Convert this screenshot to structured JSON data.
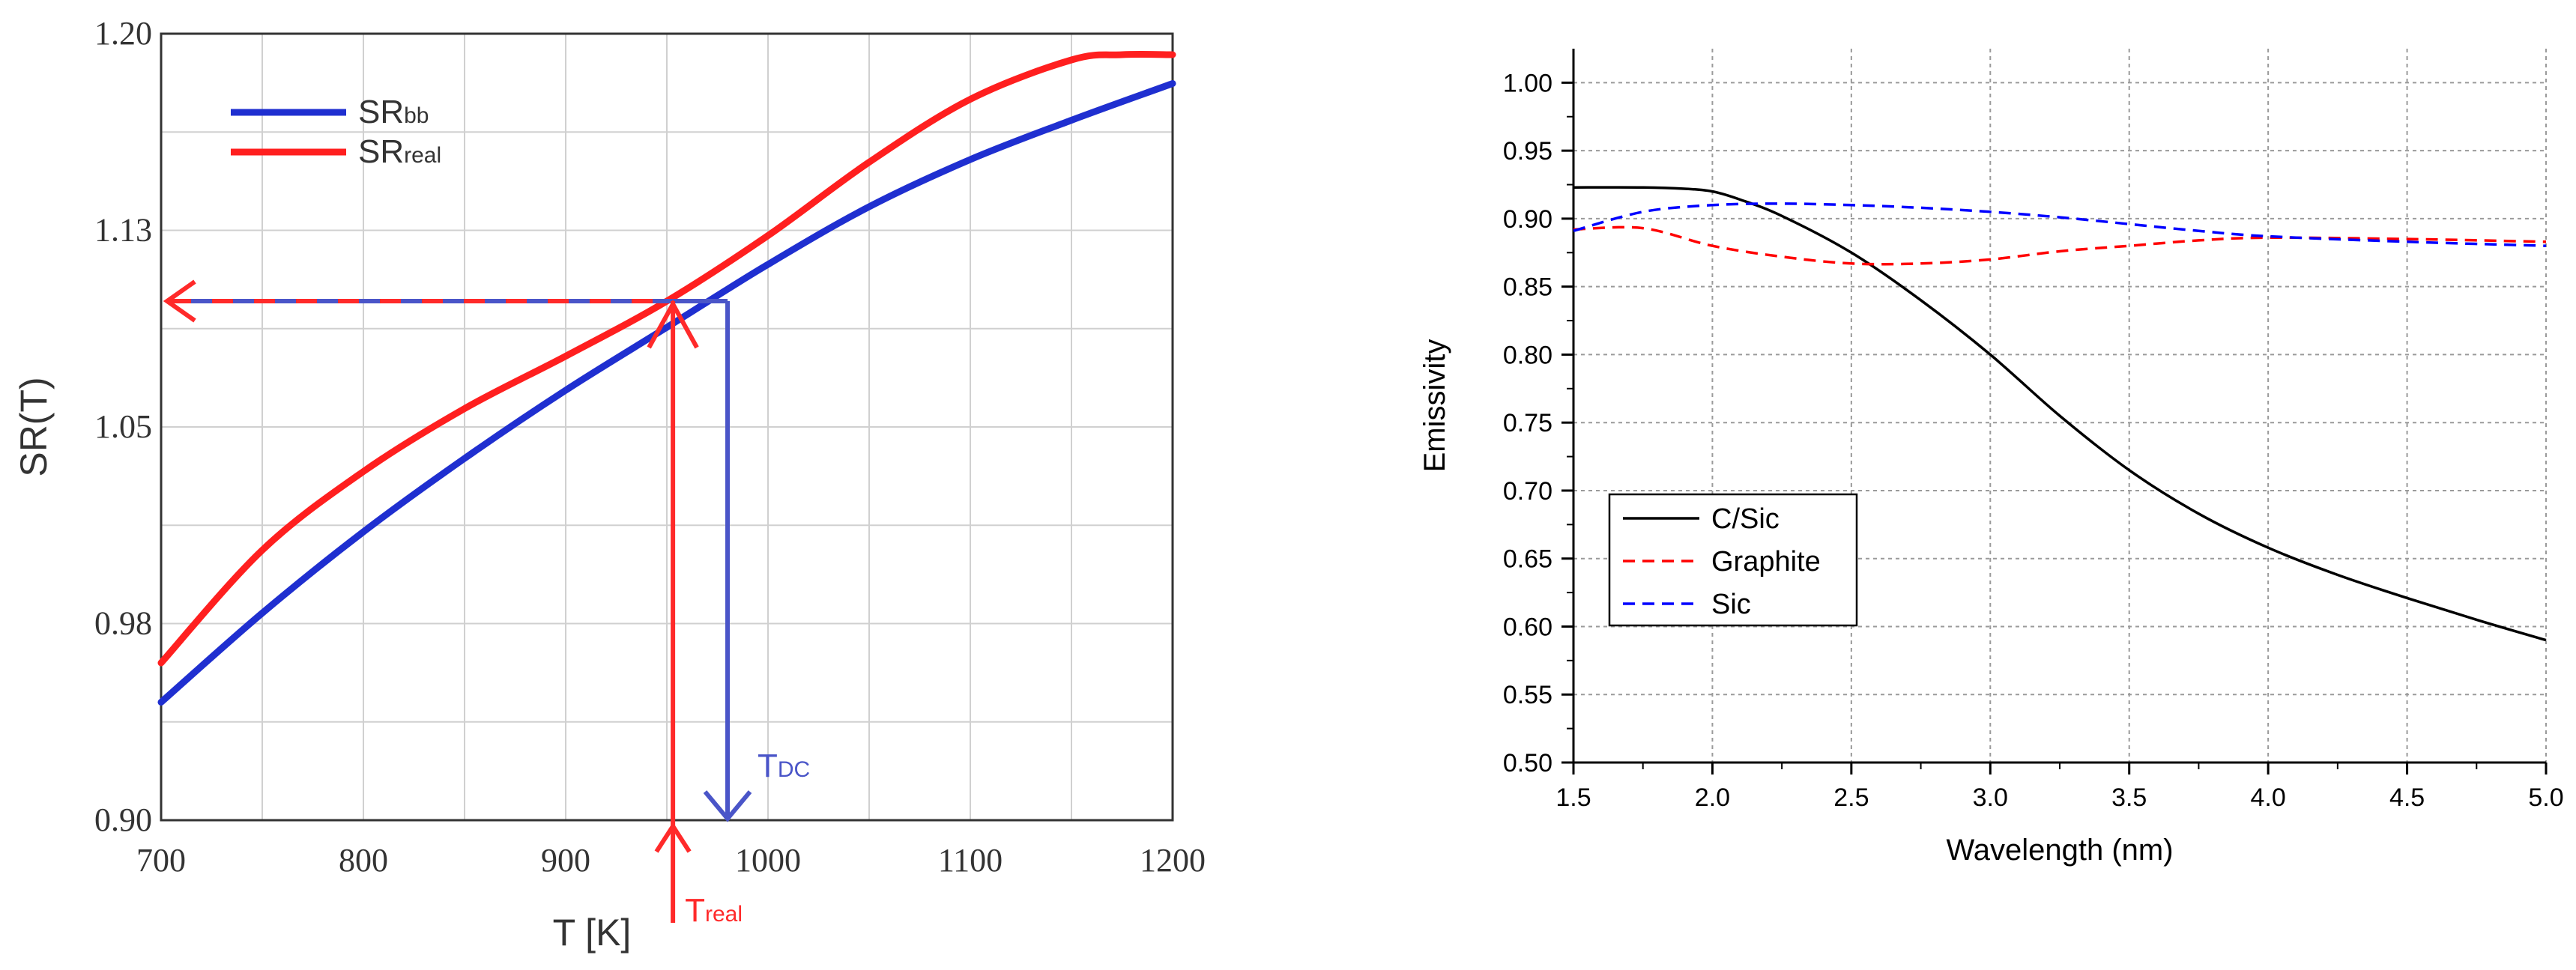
{
  "colors": {
    "sr_bb": "#1f2fd0",
    "sr_real": "#ff1f1f",
    "cs_line": "#000000",
    "graphite": "#ff0000",
    "sic": "#0000ff",
    "grid_left": "#d0d0d0",
    "grid_right": "#9a9a9a",
    "t_dc": "#4a55c8",
    "t_real": "#ff2a2a"
  },
  "chart_data": [
    {
      "type": "line",
      "title": "",
      "xlabel": "T [K]",
      "ylabel": "SR(T)",
      "xlim": [
        700,
        1200
      ],
      "ylim": [
        0.9,
        1.2
      ],
      "x_ticks": [
        700,
        800,
        900,
        1000,
        1100,
        1200
      ],
      "x_tick_labels": [
        "700",
        "800",
        "900",
        "1000",
        "1100",
        "1200"
      ],
      "y_ticks": [
        0.9,
        0.975,
        1.05,
        1.125,
        1.2
      ],
      "y_tick_labels": [
        "0.90",
        "0.98",
        "1.05",
        "1.13",
        "1.20"
      ],
      "grid": true,
      "legend_position": "top-left",
      "series": [
        {
          "name": "SR",
          "subscript": "bb",
          "x": [
            700,
            750,
            800,
            850,
            900,
            950,
            1000,
            1050,
            1100,
            1150,
            1200
          ],
          "values": [
            0.945,
            0.979,
            1.01,
            1.038,
            1.064,
            1.088,
            1.112,
            1.134,
            1.152,
            1.167,
            1.181
          ]
        },
        {
          "name": "SR",
          "subscript": "real",
          "x": [
            700,
            750,
            800,
            850,
            900,
            950,
            1000,
            1050,
            1100,
            1150,
            1175,
            1200
          ],
          "values": [
            0.96,
            1.003,
            1.033,
            1.057,
            1.077,
            1.098,
            1.123,
            1.151,
            1.175,
            1.19,
            1.192,
            1.192
          ]
        }
      ],
      "annotations": [
        {
          "label": "T",
          "subscript": "DC",
          "x": 980,
          "y_level": 1.098
        },
        {
          "label": "T",
          "subscript": "real",
          "x": 953,
          "y_level": 1.098
        }
      ]
    },
    {
      "type": "line",
      "title": "",
      "xlabel": "Wavelength (nm)",
      "ylabel": "Emissivity",
      "xlim": [
        1.5,
        5.0
      ],
      "ylim": [
        0.5,
        1.025
      ],
      "x_ticks": [
        1.5,
        2.0,
        2.5,
        3.0,
        3.5,
        4.0,
        4.5,
        5.0
      ],
      "x_tick_labels": [
        "1.5",
        "2.0",
        "2.5",
        "3.0",
        "3.5",
        "4.0",
        "4.5",
        "5.0"
      ],
      "y_ticks": [
        0.5,
        0.55,
        0.6,
        0.65,
        0.7,
        0.75,
        0.8,
        0.85,
        0.9,
        0.95,
        1.0
      ],
      "y_tick_labels": [
        "0.50",
        "0.55",
        "0.60",
        "0.65",
        "0.70",
        "0.75",
        "0.80",
        "0.85",
        "0.90",
        "0.95",
        "1.00"
      ],
      "grid": true,
      "legend_position": "center-left",
      "series": [
        {
          "name": "C/Sic",
          "style": "solid",
          "x": [
            1.5,
            1.75,
            1.9,
            2.0,
            2.1,
            2.25,
            2.5,
            2.75,
            3.0,
            3.25,
            3.5,
            3.75,
            4.0,
            4.25,
            4.5,
            4.75,
            5.0
          ],
          "values": [
            0.923,
            0.923,
            0.922,
            0.92,
            0.914,
            0.902,
            0.875,
            0.84,
            0.8,
            0.755,
            0.715,
            0.683,
            0.658,
            0.638,
            0.621,
            0.605,
            0.59
          ]
        },
        {
          "name": "Graphite",
          "style": "dashed",
          "x": [
            1.5,
            1.75,
            2.0,
            2.25,
            2.5,
            2.75,
            3.0,
            3.25,
            3.5,
            3.75,
            4.0,
            4.5,
            5.0
          ],
          "values": [
            0.892,
            0.893,
            0.88,
            0.872,
            0.867,
            0.867,
            0.87,
            0.876,
            0.88,
            0.884,
            0.886,
            0.885,
            0.883
          ]
        },
        {
          "name": "Sic",
          "style": "dashed",
          "x": [
            1.5,
            1.75,
            2.0,
            2.25,
            2.5,
            2.75,
            3.0,
            3.25,
            3.5,
            3.75,
            4.0,
            4.5,
            5.0
          ],
          "values": [
            0.891,
            0.905,
            0.91,
            0.911,
            0.91,
            0.908,
            0.905,
            0.901,
            0.896,
            0.891,
            0.887,
            0.883,
            0.88
          ]
        }
      ]
    }
  ]
}
